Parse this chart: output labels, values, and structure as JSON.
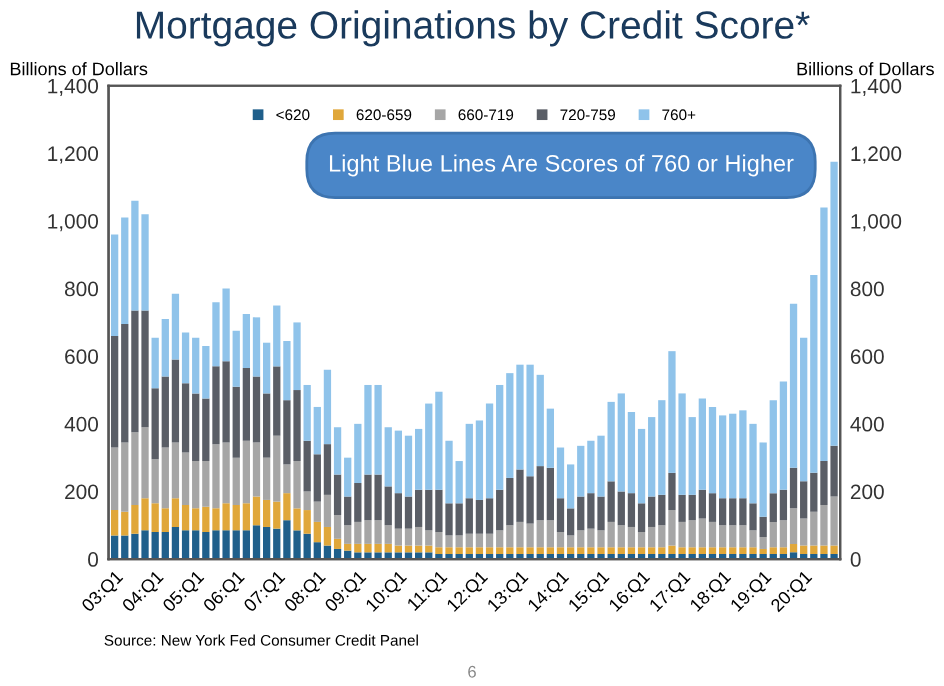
{
  "chart_data": {
    "type": "bar",
    "title": "Mortgage Originations by Credit Score*",
    "ylabel": "Billions of Dollars",
    "y2label": "Billions of Dollars",
    "categories": [
      "03:Q1",
      null,
      null,
      null,
      "04:Q1",
      null,
      null,
      null,
      "05:Q1",
      null,
      null,
      null,
      "06:Q1",
      null,
      null,
      null,
      "07:Q1",
      null,
      null,
      null,
      "08:Q1",
      null,
      null,
      null,
      "09:Q1",
      null,
      null,
      null,
      "10:Q1",
      null,
      null,
      null,
      "11:Q1",
      null,
      null,
      null,
      "12:Q1",
      null,
      null,
      null,
      "13:Q1",
      null,
      null,
      null,
      "14:Q1",
      null,
      null,
      null,
      "15:Q1",
      null,
      null,
      null,
      "16:Q1",
      null,
      null,
      null,
      "17:Q1",
      null,
      null,
      null,
      "18:Q1",
      null,
      null,
      null,
      "19:Q1",
      null,
      null,
      null,
      "20:Q1",
      null,
      null,
      null
    ],
    "stacked": true,
    "series": [
      {
        "name": "<620",
        "color": "#1f5f8b",
        "values": [
          70,
          70,
          75,
          85,
          80,
          80,
          95,
          85,
          85,
          80,
          85,
          85,
          85,
          85,
          100,
          95,
          90,
          115,
          85,
          75,
          50,
          40,
          30,
          25,
          20,
          20,
          20,
          20,
          20,
          20,
          20,
          20,
          15,
          15,
          15,
          15,
          15,
          15,
          15,
          15,
          15,
          15,
          15,
          15,
          15,
          15,
          15,
          15,
          15,
          15,
          15,
          15,
          15,
          15,
          15,
          15,
          15,
          15,
          15,
          15,
          15,
          15,
          15,
          15,
          15,
          15,
          15,
          20,
          15,
          15,
          15,
          15
        ]
      },
      {
        "name": "620-659",
        "color": "#e0a73a",
        "values": [
          75,
          70,
          85,
          95,
          85,
          70,
          85,
          75,
          65,
          75,
          65,
          80,
          75,
          80,
          85,
          80,
          80,
          80,
          65,
          70,
          60,
          55,
          30,
          20,
          25,
          25,
          25,
          25,
          20,
          20,
          20,
          20,
          20,
          20,
          20,
          20,
          20,
          20,
          20,
          20,
          20,
          20,
          20,
          20,
          20,
          20,
          20,
          20,
          20,
          20,
          20,
          20,
          20,
          20,
          20,
          25,
          20,
          20,
          20,
          20,
          20,
          20,
          20,
          20,
          15,
          20,
          20,
          25,
          25,
          25,
          25,
          25
        ]
      },
      {
        "name": "660-719",
        "color": "#a6a6a6",
        "values": [
          185,
          205,
          215,
          210,
          130,
          180,
          165,
          155,
          140,
          135,
          190,
          180,
          140,
          185,
          160,
          125,
          195,
          85,
          140,
          55,
          60,
          95,
          70,
          55,
          65,
          70,
          70,
          55,
          50,
          50,
          55,
          45,
          45,
          35,
          35,
          40,
          40,
          40,
          50,
          65,
          75,
          70,
          80,
          80,
          45,
          35,
          50,
          55,
          50,
          75,
          65,
          60,
          45,
          60,
          65,
          105,
          75,
          80,
          85,
          75,
          65,
          65,
          65,
          50,
          35,
          75,
          80,
          105,
          80,
          100,
          120,
          145
        ]
      },
      {
        "name": "720-759",
        "color": "#5a5e66",
        "values": [
          330,
          350,
          360,
          345,
          210,
          210,
          245,
          205,
          200,
          185,
          230,
          240,
          210,
          215,
          195,
          190,
          205,
          190,
          210,
          150,
          140,
          150,
          120,
          85,
          115,
          135,
          135,
          115,
          105,
          95,
          110,
          120,
          125,
          95,
          95,
          105,
          100,
          105,
          120,
          140,
          155,
          140,
          160,
          155,
          100,
          80,
          100,
          105,
          100,
          120,
          100,
          100,
          85,
          90,
          90,
          110,
          80,
          75,
          85,
          85,
          80,
          80,
          80,
          80,
          60,
          85,
          90,
          120,
          110,
          115,
          130,
          150
        ]
      },
      {
        "name": "760+",
        "color": "#8fc3ea",
        "values": [
          300,
          315,
          325,
          285,
          150,
          170,
          195,
          150,
          165,
          155,
          190,
          215,
          165,
          160,
          175,
          150,
          180,
          175,
          200,
          165,
          140,
          220,
          140,
          115,
          175,
          265,
          265,
          175,
          185,
          180,
          180,
          255,
          290,
          185,
          125,
          220,
          235,
          280,
          310,
          310,
          310,
          330,
          270,
          175,
          150,
          130,
          150,
          155,
          180,
          235,
          290,
          240,
          220,
          235,
          280,
          360,
          300,
          230,
          270,
          255,
          245,
          250,
          260,
          235,
          220,
          275,
          320,
          485,
          425,
          585,
          750,
          840
        ]
      }
    ],
    "ylim": [
      0,
      1400
    ],
    "yticks": [
      0,
      200,
      400,
      600,
      800,
      {
        "value": 1000,
        "label": "1,000"
      },
      {
        "value": 1200,
        "label": "1,200"
      },
      {
        "value": 1400,
        "label": "1,400"
      }
    ],
    "y2lim": [
      0,
      1400
    ],
    "y2ticks": [
      0,
      200,
      400,
      600,
      800,
      {
        "value": 1000,
        "label": "1,000"
      },
      {
        "value": 1200,
        "label": "1,200"
      },
      {
        "value": 1400,
        "label": "1,400"
      }
    ],
    "legend": "top",
    "grid": false,
    "annotations": [
      "Light Blue Lines Are Scores of 760 or Higher",
      "Source: New York Fed Consumer Credit Panel",
      "6"
    ]
  }
}
